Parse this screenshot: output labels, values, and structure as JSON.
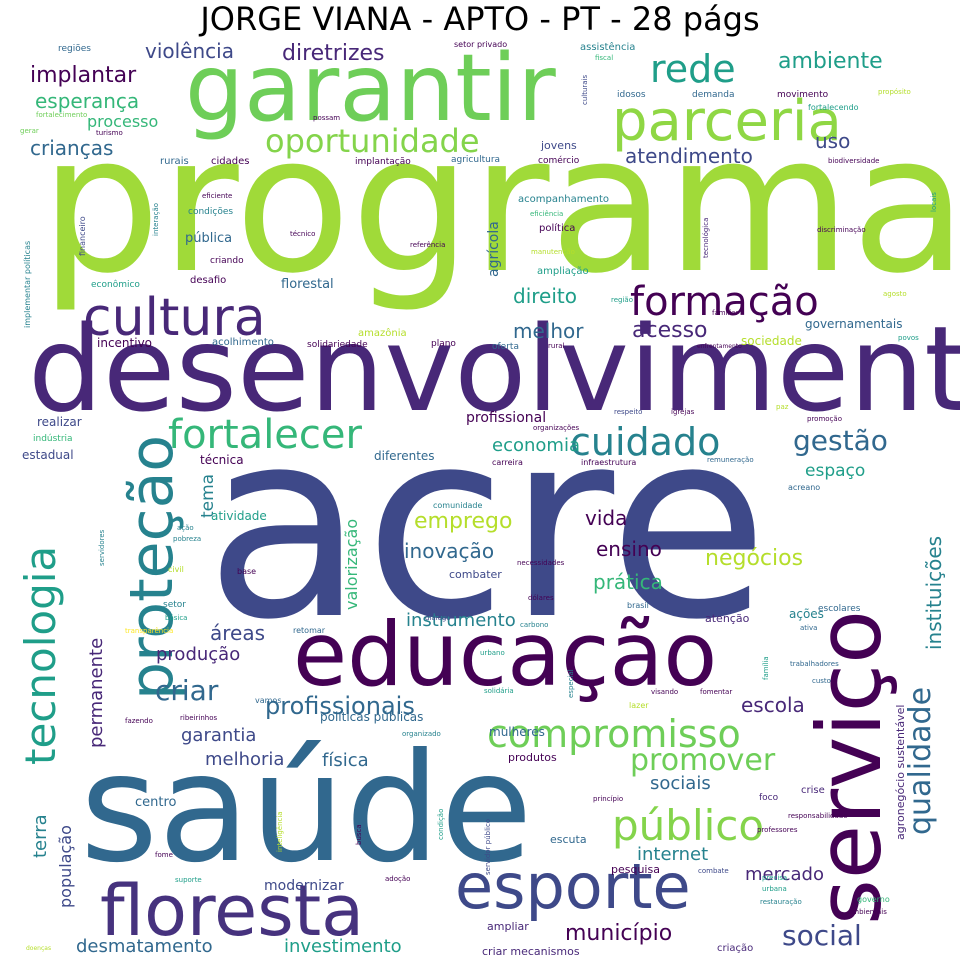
{
  "title": "JORGE VIANA - APTO - PT - 28 págs",
  "palette": [
    "#440154",
    "#482878",
    "#3e4989",
    "#31688e",
    "#26828e",
    "#1f9e89",
    "#35b779",
    "#6ece58",
    "#b5de2b",
    "#fde725"
  ],
  "words": [
    {
      "text": "acre",
      "weight": 420,
      "color": "#3e4989"
    },
    {
      "text": "programa",
      "weight": 300,
      "color": "#a0da39"
    },
    {
      "text": "desenvolvimento",
      "weight": 190,
      "color": "#482878"
    },
    {
      "text": "saúde",
      "weight": 225,
      "color": "#31688e"
    },
    {
      "text": "garantir",
      "weight": 125,
      "color": "#6ece58"
    },
    {
      "text": "educação",
      "weight": 115,
      "color": "#440154"
    },
    {
      "text": "serviço",
      "weight": 125,
      "color": "#440154"
    },
    {
      "text": "floresta",
      "weight": 95,
      "color": "#46327e"
    },
    {
      "text": "esporte",
      "weight": 85,
      "color": "#3e4989"
    },
    {
      "text": "proteção",
      "weight": 78,
      "color": "#26828e"
    },
    {
      "text": "parceria",
      "weight": 80,
      "color": "#8fd744"
    },
    {
      "text": "cultura",
      "weight": 70,
      "color": "#482878"
    },
    {
      "text": "tecnologia",
      "weight": 60,
      "color": "#1f9e89"
    },
    {
      "text": "fortalecer",
      "weight": 58,
      "color": "#35b779"
    },
    {
      "text": "formação",
      "weight": 55,
      "color": "#440154"
    },
    {
      "text": "cuidado",
      "weight": 55,
      "color": "#26828e"
    },
    {
      "text": "compromisso",
      "weight": 52,
      "color": "#6ece58"
    },
    {
      "text": "público",
      "weight": 52,
      "color": "#84d44b"
    },
    {
      "text": "rede",
      "weight": 50,
      "color": "#1f9e89"
    },
    {
      "text": "qualidade",
      "weight": 42,
      "color": "#31688e"
    },
    {
      "text": "oportunidade",
      "weight": 40,
      "color": "#84d44b"
    },
    {
      "text": "promover",
      "weight": 42,
      "color": "#6ece58"
    },
    {
      "text": "gestão",
      "weight": 38,
      "color": "#31688e"
    },
    {
      "text": "social",
      "weight": 38,
      "color": "#3e4989"
    },
    {
      "text": "criar",
      "weight": 36,
      "color": "#31688e"
    },
    {
      "text": "profissionais",
      "weight": 34,
      "color": "#31688e"
    },
    {
      "text": "implantar",
      "weight": 30,
      "color": "#440154"
    },
    {
      "text": "diretrizes",
      "weight": 30,
      "color": "#482878"
    },
    {
      "text": "ambiente",
      "weight": 30,
      "color": "#1f9e89"
    },
    {
      "text": "crianças",
      "weight": 28,
      "color": "#31688e"
    },
    {
      "text": "esperança",
      "weight": 28,
      "color": "#35b779"
    },
    {
      "text": "direito",
      "weight": 28,
      "color": "#1f9e89"
    },
    {
      "text": "acesso",
      "weight": 28,
      "color": "#482878"
    },
    {
      "text": "melhor",
      "weight": 26,
      "color": "#31688e"
    },
    {
      "text": "atendimento",
      "weight": 26,
      "color": "#3e4989"
    },
    {
      "text": "violência",
      "weight": 24,
      "color": "#3e4989"
    },
    {
      "text": "uso",
      "weight": 24,
      "color": "#3e4989"
    },
    {
      "text": "economia",
      "weight": 24,
      "color": "#1f9e89"
    },
    {
      "text": "emprego",
      "weight": 26,
      "color": "#b5de2b"
    },
    {
      "text": "inovação",
      "weight": 24,
      "color": "#31688e"
    },
    {
      "text": "negócios",
      "weight": 24,
      "color": "#b5de2b"
    },
    {
      "text": "ensino",
      "weight": 24,
      "color": "#440154"
    },
    {
      "text": "vida",
      "weight": 24,
      "color": "#440154"
    },
    {
      "text": "prática",
      "weight": 24,
      "color": "#35b779"
    },
    {
      "text": "instituições",
      "weight": 24,
      "color": "#26828e"
    },
    {
      "text": "valorização",
      "weight": 22,
      "color": "#35b779"
    },
    {
      "text": "tema",
      "weight": 22,
      "color": "#26828e"
    },
    {
      "text": "espaço",
      "weight": 22,
      "color": "#1f9e89"
    },
    {
      "text": "instrumento",
      "weight": 22,
      "color": "#26828e"
    },
    {
      "text": "áreas",
      "weight": 22,
      "color": "#3e4989"
    },
    {
      "text": "produção",
      "weight": 22,
      "color": "#482878"
    },
    {
      "text": "permanente",
      "weight": 22,
      "color": "#482878"
    },
    {
      "text": "garantia",
      "weight": 22,
      "color": "#3e4989"
    },
    {
      "text": "melhoria",
      "weight": 22,
      "color": "#3e4989"
    },
    {
      "text": "física",
      "weight": 22,
      "color": "#31688e"
    },
    {
      "text": "escola",
      "weight": 22,
      "color": "#482878"
    },
    {
      "text": "sociais",
      "weight": 22,
      "color": "#31688e"
    },
    {
      "text": "internet",
      "weight": 22,
      "color": "#26828e"
    },
    {
      "text": "mercado",
      "weight": 22,
      "color": "#482878"
    },
    {
      "text": "município",
      "weight": 22,
      "color": "#440154"
    },
    {
      "text": "investimento",
      "weight": 22,
      "color": "#1f9e89"
    },
    {
      "text": "desmatamento",
      "weight": 22,
      "color": "#31688e"
    },
    {
      "text": "terra",
      "weight": 22,
      "color": "#26828e"
    },
    {
      "text": "população",
      "weight": 20,
      "color": "#3e4989"
    },
    {
      "text": "processo",
      "weight": 18,
      "color": "#35b779"
    },
    {
      "text": "profissional",
      "weight": 16,
      "color": "#440154"
    },
    {
      "text": "agrícola",
      "weight": 16,
      "color": "#31688e"
    },
    {
      "text": "modernizar",
      "weight": 15,
      "color": "#3e4989"
    },
    {
      "text": "centro",
      "weight": 14,
      "color": "#31688e"
    },
    {
      "text": "incentivo",
      "weight": 13,
      "color": "#440154"
    },
    {
      "text": "pública",
      "weight": 13,
      "color": "#31688e"
    },
    {
      "text": "florestal",
      "weight": 13,
      "color": "#31688e"
    },
    {
      "text": "sociedade",
      "weight": 13,
      "color": "#b5de2b"
    },
    {
      "text": "governamentais",
      "weight": 13,
      "color": "#31688e"
    },
    {
      "text": "agronegócio sustentável",
      "weight": 12,
      "color": "#482878"
    },
    {
      "text": "diferentes",
      "weight": 13,
      "color": "#31688e"
    },
    {
      "text": "técnica",
      "weight": 13,
      "color": "#440154"
    },
    {
      "text": "atividade",
      "weight": 13,
      "color": "#1f9e89"
    },
    {
      "text": "realizar",
      "weight": 13,
      "color": "#3e4989"
    },
    {
      "text": "estadual",
      "weight": 13,
      "color": "#3e4989"
    },
    {
      "text": "combater",
      "weight": 12,
      "color": "#3e4989"
    },
    {
      "text": "atenção",
      "weight": 12,
      "color": "#482878"
    },
    {
      "text": "ações",
      "weight": 13,
      "color": "#26828e"
    },
    {
      "text": "políticas públicas",
      "weight": 13,
      "color": "#31688e"
    },
    {
      "text": "mulheres",
      "weight": 13,
      "color": "#31688e"
    },
    {
      "text": "produtos",
      "weight": 12,
      "color": "#440154"
    },
    {
      "text": "escuta",
      "weight": 12,
      "color": "#31688e"
    },
    {
      "text": "pesquisa",
      "weight": 12,
      "color": "#440154"
    },
    {
      "text": "ampliar",
      "weight": 12,
      "color": "#482878"
    },
    {
      "text": "criar mecanismos",
      "weight": 12,
      "color": "#482878"
    },
    {
      "text": "criação",
      "weight": 11,
      "color": "#482878"
    },
    {
      "text": "crise",
      "weight": 11,
      "color": "#482878"
    },
    {
      "text": "foco",
      "weight": 10,
      "color": "#482878"
    },
    {
      "text": "escolares",
      "weight": 10,
      "color": "#31688e"
    },
    {
      "text": "jovens",
      "weight": 12,
      "color": "#3e4989"
    },
    {
      "text": "cidades",
      "weight": 11,
      "color": "#440154"
    },
    {
      "text": "rurais",
      "weight": 11,
      "color": "#31688e"
    },
    {
      "text": "assistência",
      "weight": 11,
      "color": "#26828e"
    },
    {
      "text": "movimento",
      "weight": 10,
      "color": "#440154"
    },
    {
      "text": "idosos",
      "weight": 10,
      "color": "#31688e"
    },
    {
      "text": "demanda",
      "weight": 10,
      "color": "#31688e"
    },
    {
      "text": "comércio",
      "weight": 10,
      "color": "#440154"
    },
    {
      "text": "agricultura",
      "weight": 10,
      "color": "#31688e"
    },
    {
      "text": "implantação",
      "weight": 10,
      "color": "#440154"
    },
    {
      "text": "acompanhamento",
      "weight": 11,
      "color": "#26828e"
    },
    {
      "text": "política",
      "weight": 11,
      "color": "#440154"
    },
    {
      "text": "ampliação",
      "weight": 11,
      "color": "#1f9e89"
    },
    {
      "text": "acolhimento",
      "weight": 11,
      "color": "#31688e"
    },
    {
      "text": "solidariedade",
      "weight": 10,
      "color": "#440154"
    },
    {
      "text": "plano",
      "weight": 10,
      "color": "#440154"
    },
    {
      "text": "oferta",
      "weight": 10,
      "color": "#31688e"
    },
    {
      "text": "desafio",
      "weight": 11,
      "color": "#440154"
    },
    {
      "text": "criando",
      "weight": 9,
      "color": "#440154"
    },
    {
      "text": "condições",
      "weight": 10,
      "color": "#26828e"
    },
    {
      "text": "econômico",
      "weight": 10,
      "color": "#1f9e89"
    },
    {
      "text": "amazônia",
      "weight": 10,
      "color": "#b5de2b"
    },
    {
      "text": "indústria",
      "weight": 10,
      "color": "#35b779"
    },
    {
      "text": "setor",
      "weight": 10,
      "color": "#26828e"
    },
    {
      "text": "comunidade",
      "weight": 9,
      "color": "#26828e"
    },
    {
      "text": "acreano",
      "weight": 9,
      "color": "#31688e"
    },
    {
      "text": "regiões",
      "weight": 9,
      "color": "#31688e"
    },
    {
      "text": "turismo",
      "weight": 8,
      "color": "#440154"
    },
    {
      "text": "gerar",
      "weight": 8,
      "color": "#6ece58"
    },
    {
      "text": "possam",
      "weight": 8,
      "color": "#440154"
    },
    {
      "text": "setor privado",
      "weight": 8,
      "color": "#440154"
    },
    {
      "text": "fiscal",
      "weight": 8,
      "color": "#35b779"
    },
    {
      "text": "culturais",
      "weight": 8,
      "color": "#3e4989"
    },
    {
      "text": "fortalecendo",
      "weight": 8,
      "color": "#1f9e89"
    },
    {
      "text": "propósito",
      "weight": 8,
      "color": "#b5de2b"
    },
    {
      "text": "fortalecimento",
      "weight": 8,
      "color": "#6ece58"
    },
    {
      "text": "biodiversidade",
      "weight": 8,
      "color": "#440154"
    },
    {
      "text": "discriminação",
      "weight": 8,
      "color": "#440154"
    },
    {
      "text": "locais",
      "weight": 8,
      "color": "#1f9e89"
    },
    {
      "text": "implementar políticas",
      "weight": 8,
      "color": "#26828e"
    },
    {
      "text": "financeiro",
      "weight": 8,
      "color": "#3e4989"
    },
    {
      "text": "interação",
      "weight": 8,
      "color": "#26828e"
    },
    {
      "text": "eficiente",
      "weight": 8,
      "color": "#440154"
    },
    {
      "text": "eficiência",
      "weight": 8,
      "color": "#35b779"
    },
    {
      "text": "técnico",
      "weight": 8,
      "color": "#440154"
    },
    {
      "text": "referência",
      "weight": 8,
      "color": "#440154"
    },
    {
      "text": "tecnológica",
      "weight": 8,
      "color": "#482878"
    },
    {
      "text": "manutenção",
      "weight": 8,
      "color": "#b5de2b"
    },
    {
      "text": "região",
      "weight": 8,
      "color": "#1f9e89"
    },
    {
      "text": "agosto",
      "weight": 8,
      "color": "#b5de2b"
    },
    {
      "text": "familiar",
      "weight": 8,
      "color": "#440154"
    },
    {
      "text": "rural",
      "weight": 8,
      "color": "#440154"
    },
    {
      "text": "enfrentamento",
      "weight": 7,
      "color": "#440154"
    },
    {
      "text": "povos",
      "weight": 8,
      "color": "#1f9e89"
    },
    {
      "text": "respeito",
      "weight": 8,
      "color": "#3e4989"
    },
    {
      "text": "igrejas",
      "weight": 8,
      "color": "#440154"
    },
    {
      "text": "paz",
      "weight": 8,
      "color": "#b5de2b"
    },
    {
      "text": "promoção",
      "weight": 8,
      "color": "#440154"
    },
    {
      "text": "organizações",
      "weight": 8,
      "color": "#440154"
    },
    {
      "text": "carreira",
      "weight": 9,
      "color": "#440154"
    },
    {
      "text": "infraestrutura",
      "weight": 9,
      "color": "#440154"
    },
    {
      "text": "remuneração",
      "weight": 8,
      "color": "#31688e"
    },
    {
      "text": "servidores",
      "weight": 8,
      "color": "#26828e"
    },
    {
      "text": "ação",
      "weight": 8,
      "color": "#26828e"
    },
    {
      "text": "pobreza",
      "weight": 8,
      "color": "#26828e"
    },
    {
      "text": "civil",
      "weight": 9,
      "color": "#b5de2b"
    },
    {
      "text": "base",
      "weight": 9,
      "color": "#440154"
    },
    {
      "text": "necessidades",
      "weight": 8,
      "color": "#440154"
    },
    {
      "text": "dólares",
      "weight": 8,
      "color": "#440154"
    },
    {
      "text": "carbono",
      "weight": 8,
      "color": "#26828e"
    },
    {
      "text": "diálogo",
      "weight": 8,
      "color": "#3e4989"
    },
    {
      "text": "brasil",
      "weight": 9,
      "color": "#31688e"
    },
    {
      "text": "básica",
      "weight": 8,
      "color": "#1f9e89"
    },
    {
      "text": "transparência",
      "weight": 8,
      "color": "#fde725"
    },
    {
      "text": "retomar",
      "weight": 9,
      "color": "#31688e"
    },
    {
      "text": "ativa",
      "weight": 8,
      "color": "#31688e"
    },
    {
      "text": "família",
      "weight": 8,
      "color": "#1f9e89"
    },
    {
      "text": "custo",
      "weight": 8,
      "color": "#31688e"
    },
    {
      "text": "trabalhadores",
      "weight": 8,
      "color": "#31688e"
    },
    {
      "text": "urbano",
      "weight": 8,
      "color": "#1f9e89"
    },
    {
      "text": "especial",
      "weight": 8,
      "color": "#26828e"
    },
    {
      "text": "visando",
      "weight": 8,
      "color": "#440154"
    },
    {
      "text": "fomentar",
      "weight": 8,
      "color": "#440154"
    },
    {
      "text": "solidária",
      "weight": 8,
      "color": "#1f9e89"
    },
    {
      "text": "vamos",
      "weight": 9,
      "color": "#31688e"
    },
    {
      "text": "lazer",
      "weight": 9,
      "color": "#b5de2b"
    },
    {
      "text": "fazendo",
      "weight": 8,
      "color": "#440154"
    },
    {
      "text": "ribeirinhos",
      "weight": 8,
      "color": "#440154"
    },
    {
      "text": "organizado",
      "weight": 8,
      "color": "#26828e"
    },
    {
      "text": "princípio",
      "weight": 8,
      "color": "#440154"
    },
    {
      "text": "inteligência",
      "weight": 8,
      "color": "#b5de2b"
    },
    {
      "text": "busca",
      "weight": 8,
      "color": "#440154"
    },
    {
      "text": "condição",
      "weight": 8,
      "color": "#1f9e89"
    },
    {
      "text": "servidor público",
      "weight": 8,
      "color": "#3e4989"
    },
    {
      "text": "responsabilidade",
      "weight": 8,
      "color": "#440154"
    },
    {
      "text": "professores",
      "weight": 8,
      "color": "#440154"
    },
    {
      "text": "fome",
      "weight": 8,
      "color": "#440154"
    },
    {
      "text": "suporte",
      "weight": 8,
      "color": "#1f9e89"
    },
    {
      "text": "adoção",
      "weight": 8,
      "color": "#440154"
    },
    {
      "text": "combate",
      "weight": 8,
      "color": "#3e4989"
    },
    {
      "text": "precisa",
      "weight": 8,
      "color": "#1f9e89"
    },
    {
      "text": "urbana",
      "weight": 8,
      "color": "#1f9e89"
    },
    {
      "text": "restauração",
      "weight": 8,
      "color": "#26828e"
    },
    {
      "text": "governo",
      "weight": 9,
      "color": "#35b779"
    },
    {
      "text": "ambientais",
      "weight": 8,
      "color": "#440154"
    },
    {
      "text": "doenças",
      "weight": 7,
      "color": "#b5de2b"
    }
  ]
}
